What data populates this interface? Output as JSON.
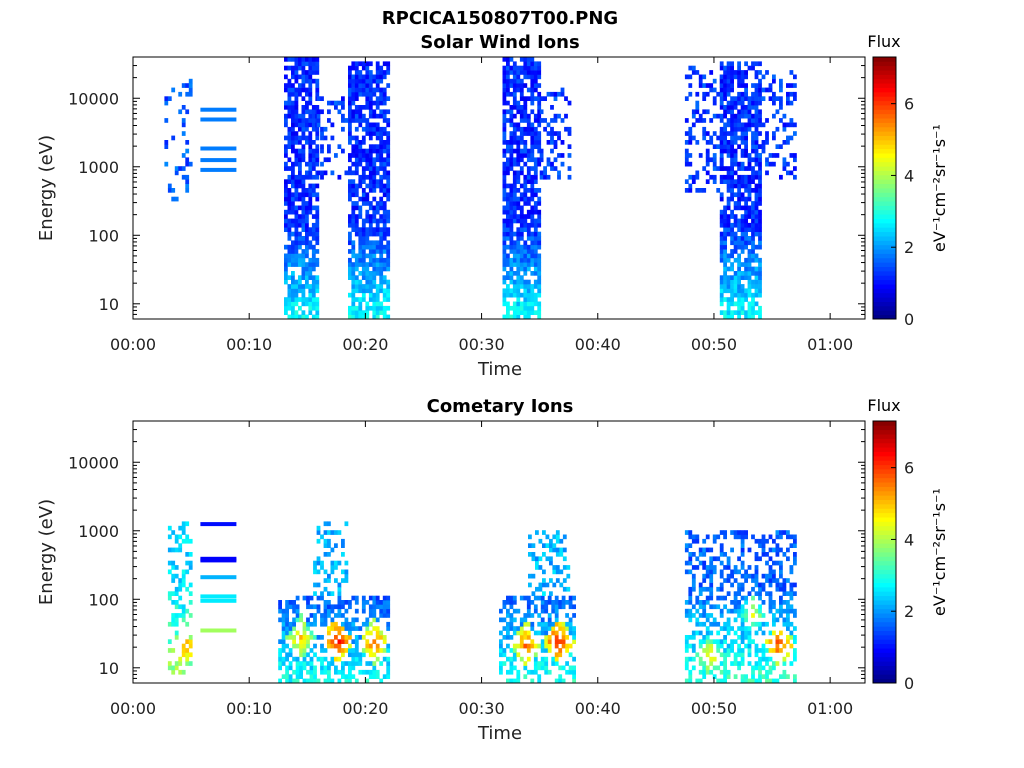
{
  "figure_title": "RPCICA150807T00.PNG",
  "chart_data": [
    {
      "type": "heatmap",
      "title": "Solar Wind Ions",
      "xlabel": "Time",
      "ylabel": "Energy (eV)",
      "xlim": [
        "00:00",
        "01:03"
      ],
      "x_ticks": [
        "00:00",
        "00:10",
        "00:20",
        "00:30",
        "00:40",
        "00:50",
        "01:00"
      ],
      "y_scale": "log",
      "ylim": [
        6,
        40000
      ],
      "y_ticks": [
        "10",
        "100",
        "1000",
        "10000"
      ],
      "grid": false,
      "colorbar": {
        "title": "Flux",
        "unit": "eV⁻¹cm⁻²sr⁻¹s⁻¹",
        "range": [
          0,
          7.3
        ],
        "ticks": [
          "0",
          "2",
          "4",
          "6"
        ]
      },
      "bursts": [
        {
          "t_start": 2.7,
          "t_end": 5.0,
          "e_low": 300,
          "e_high": 20000,
          "level": 1.5,
          "density": 0.18
        },
        {
          "t_start": 13.0,
          "t_end": 15.8,
          "e_low": 6,
          "e_high": 40000,
          "level": 1.2,
          "density": 0.75
        },
        {
          "t_start": 18.5,
          "t_end": 22.0,
          "e_low": 6,
          "e_high": 35000,
          "level": 1.2,
          "density": 0.75
        },
        {
          "t_start": 15.8,
          "t_end": 18.5,
          "e_low": 700,
          "e_high": 10000,
          "level": 1.3,
          "density": 0.3
        },
        {
          "t_start": 31.8,
          "t_end": 35.0,
          "e_low": 6,
          "e_high": 40000,
          "level": 1.2,
          "density": 0.75
        },
        {
          "t_start": 35.0,
          "t_end": 37.4,
          "e_low": 700,
          "e_high": 15000,
          "level": 1.3,
          "density": 0.3
        },
        {
          "t_start": 47.5,
          "t_end": 50.5,
          "e_low": 400,
          "e_high": 30000,
          "level": 1.3,
          "density": 0.35
        },
        {
          "t_start": 50.5,
          "t_end": 53.8,
          "e_low": 6,
          "e_high": 35000,
          "level": 1.2,
          "density": 0.75
        },
        {
          "t_start": 53.8,
          "t_end": 57.0,
          "e_low": 700,
          "e_high": 25000,
          "level": 1.3,
          "density": 0.3
        }
      ],
      "lines": [
        {
          "t_start": 5.8,
          "t_end": 8.9,
          "energy": 6800,
          "level": 1.8
        },
        {
          "t_start": 5.8,
          "t_end": 8.9,
          "energy": 4900,
          "level": 1.8
        },
        {
          "t_start": 5.8,
          "t_end": 8.9,
          "energy": 1850,
          "level": 1.8
        },
        {
          "t_start": 5.8,
          "t_end": 8.9,
          "energy": 1250,
          "level": 1.8
        },
        {
          "t_start": 5.8,
          "t_end": 8.9,
          "energy": 900,
          "level": 1.8
        }
      ]
    },
    {
      "type": "heatmap",
      "title": "Cometary Ions",
      "xlabel": "Time",
      "ylabel": "Energy (eV)",
      "xlim": [
        "00:00",
        "01:03"
      ],
      "x_ticks": [
        "00:00",
        "00:10",
        "00:20",
        "00:30",
        "00:40",
        "00:50",
        "01:00"
      ],
      "y_scale": "log",
      "ylim": [
        6,
        40000
      ],
      "y_ticks": [
        "10",
        "100",
        "1000",
        "10000"
      ],
      "grid": false,
      "colorbar": {
        "title": "Flux",
        "unit": "eV⁻¹cm⁻²sr⁻¹s⁻¹",
        "range": [
          0,
          7.3
        ],
        "ticks": [
          "0",
          "2",
          "4",
          "6"
        ]
      },
      "bursts": [
        {
          "t_start": 3.0,
          "t_end": 5.0,
          "e_low": 8,
          "e_high": 1300,
          "level": 2.5,
          "density": 0.4
        },
        {
          "t_start": 12.5,
          "t_end": 22.0,
          "e_low": 6,
          "e_high": 120,
          "level": 1.3,
          "density": 0.55
        },
        {
          "t_start": 15.5,
          "t_end": 18.5,
          "e_low": 120,
          "e_high": 1300,
          "level": 2.2,
          "density": 0.35
        },
        {
          "t_start": 31.5,
          "t_end": 38.0,
          "e_low": 6,
          "e_high": 120,
          "level": 1.4,
          "density": 0.5
        },
        {
          "t_start": 34.0,
          "t_end": 37.5,
          "e_low": 120,
          "e_high": 1000,
          "level": 2.2,
          "density": 0.35
        },
        {
          "t_start": 47.5,
          "t_end": 57.0,
          "e_low": 6,
          "e_high": 1000,
          "level": 1.6,
          "density": 0.45
        }
      ],
      "lines": [
        {
          "t_start": 5.8,
          "t_end": 8.9,
          "energy": 1250,
          "level": 1.0
        },
        {
          "t_start": 5.8,
          "t_end": 8.9,
          "energy": 390,
          "level": 0.9
        },
        {
          "t_start": 5.8,
          "t_end": 8.9,
          "energy": 370,
          "level": 0.9
        },
        {
          "t_start": 5.8,
          "t_end": 8.9,
          "energy": 210,
          "level": 2.2
        },
        {
          "t_start": 5.8,
          "t_end": 8.9,
          "energy": 110,
          "level": 2.6
        },
        {
          "t_start": 5.8,
          "t_end": 8.9,
          "energy": 95,
          "level": 2.6
        },
        {
          "t_start": 5.8,
          "t_end": 8.9,
          "energy": 35,
          "level": 3.9
        }
      ],
      "hotspots": [
        {
          "t": 4.3,
          "energy": 20,
          "level": 5.5
        },
        {
          "t": 14.3,
          "energy": 27,
          "level": 5.2
        },
        {
          "t": 17.4,
          "energy": 25,
          "level": 6.5
        },
        {
          "t": 20.6,
          "energy": 24,
          "level": 5.8
        },
        {
          "t": 33.7,
          "energy": 22,
          "level": 5.8
        },
        {
          "t": 36.5,
          "energy": 25,
          "level": 6.3
        },
        {
          "t": 49.5,
          "energy": 15,
          "level": 4.8
        },
        {
          "t": 55.5,
          "energy": 22,
          "level": 6.0
        },
        {
          "t": 53.2,
          "energy": 60,
          "level": 4.4
        }
      ]
    }
  ]
}
